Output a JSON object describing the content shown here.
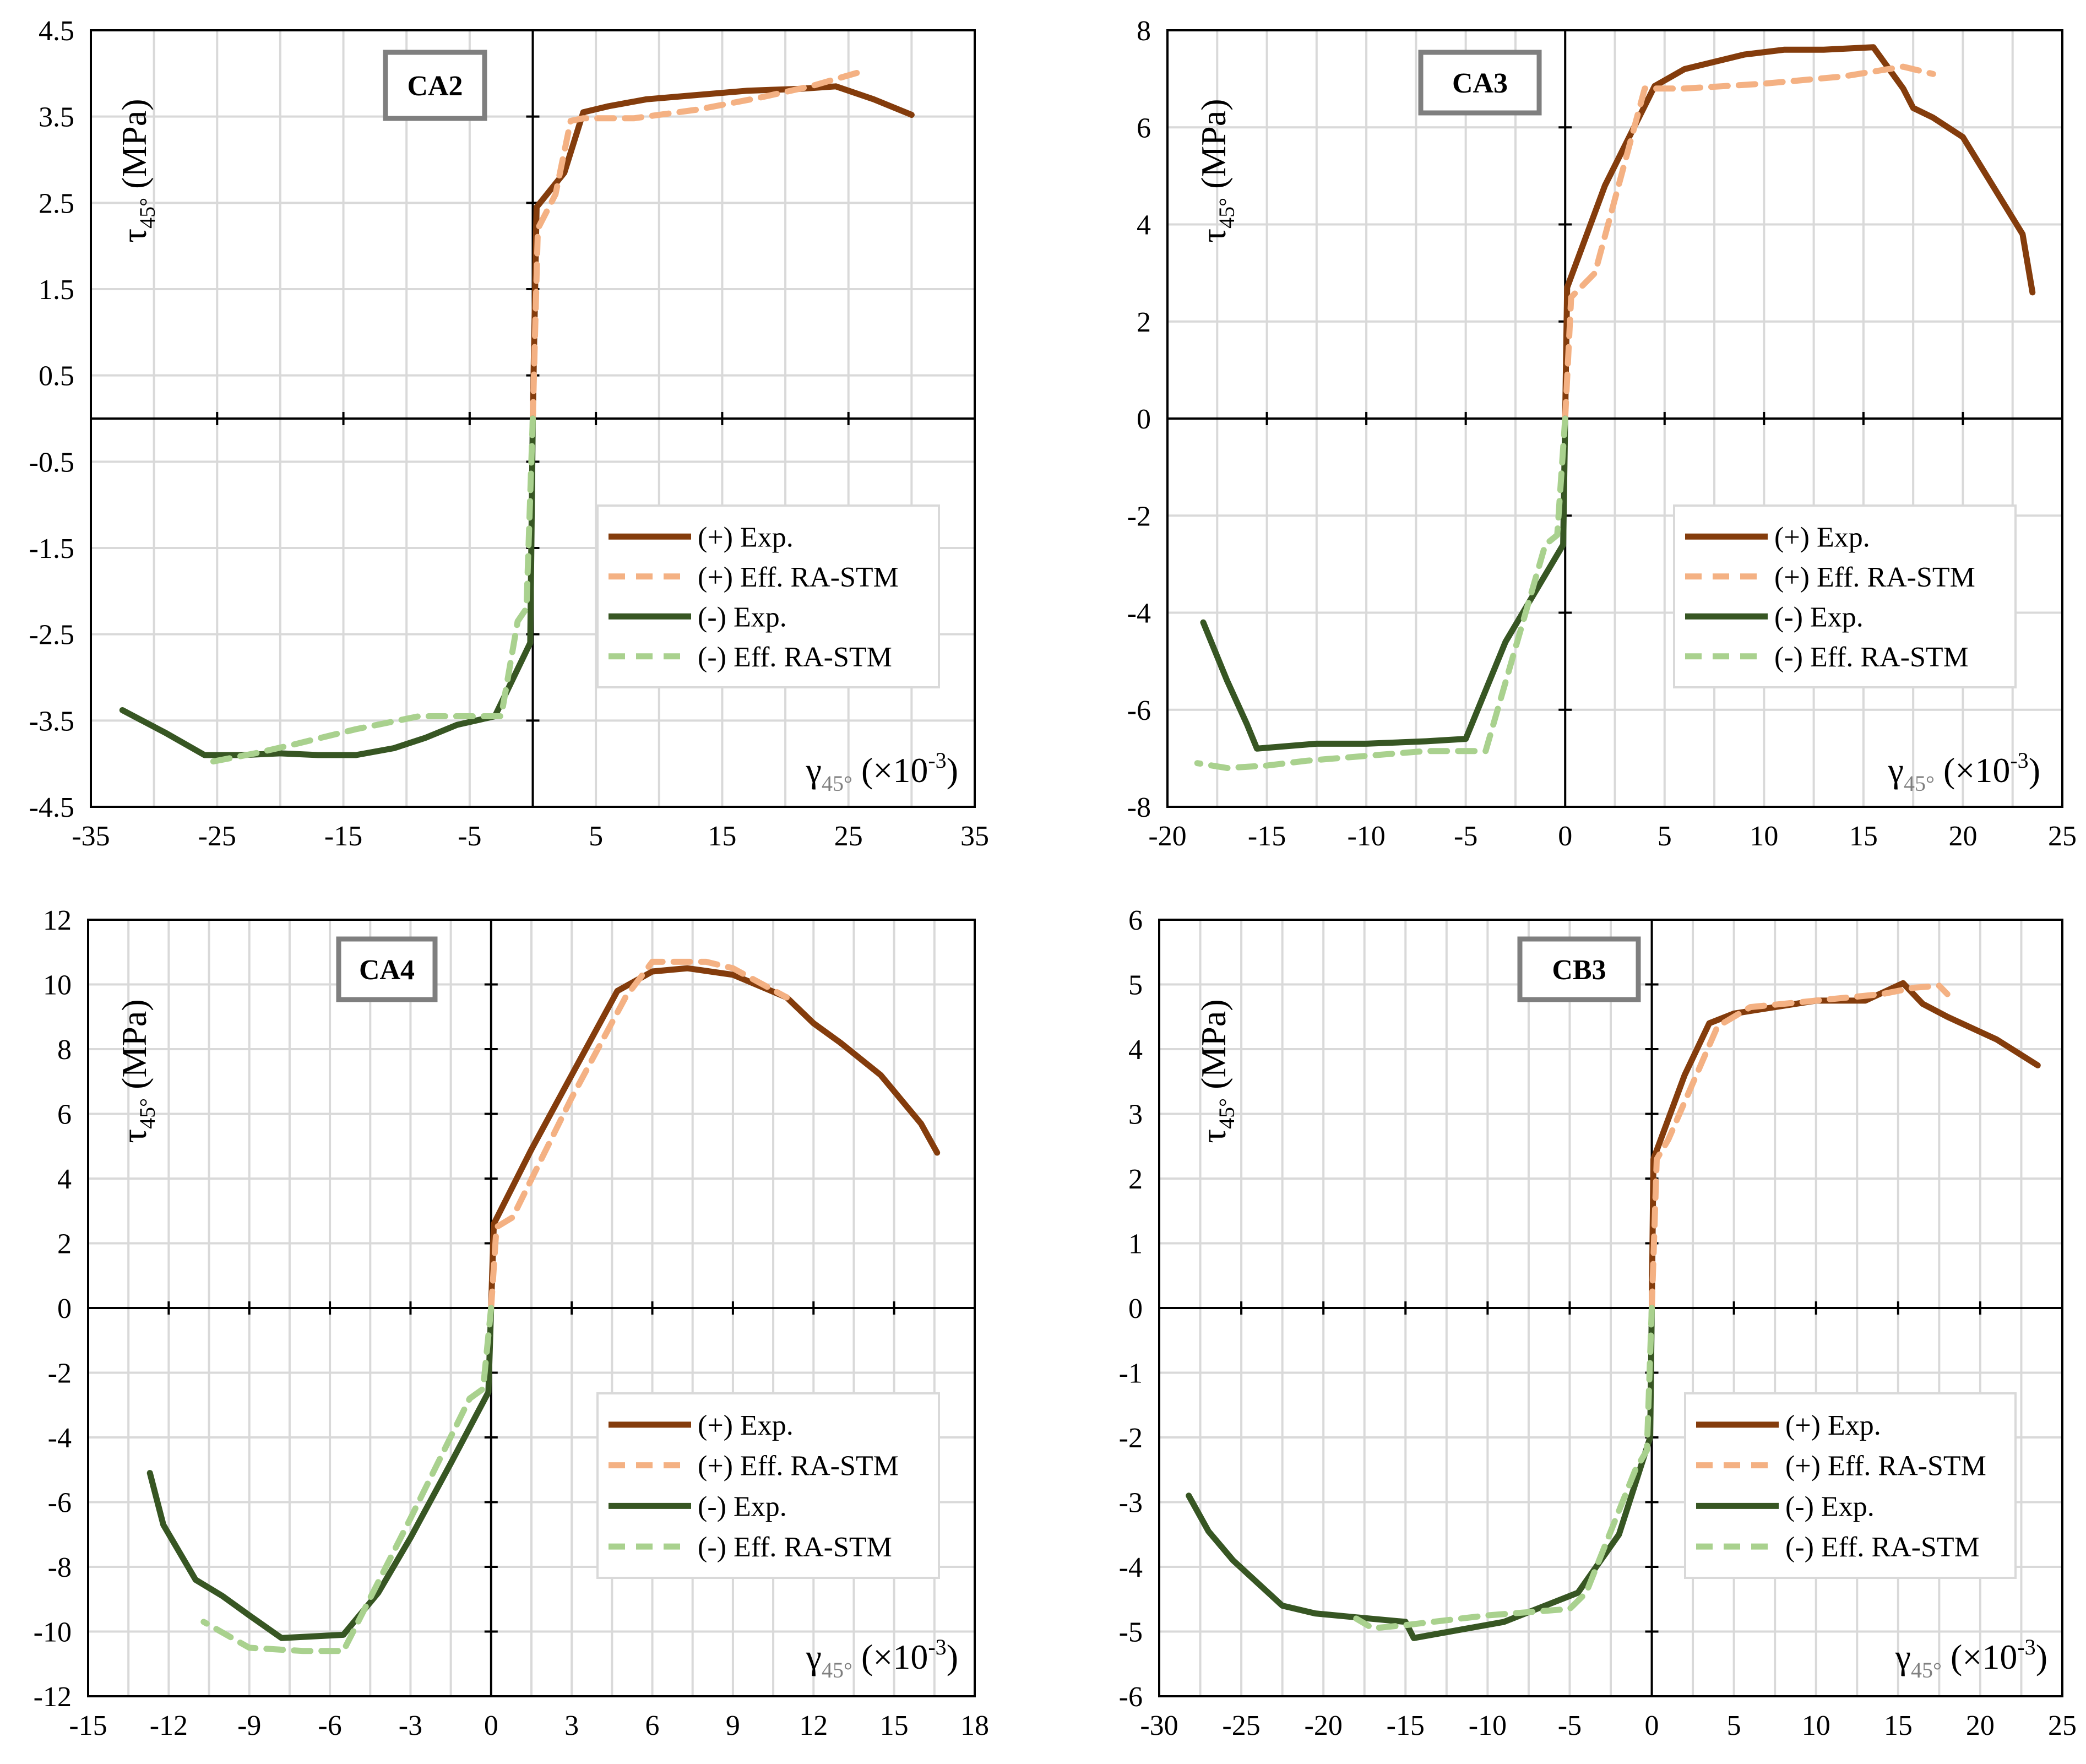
{
  "chart_data": [
    {
      "type": "line",
      "title": "CA2",
      "xlabel": "γ45° (×10-3)",
      "ylabel": "τ45° (MPa)",
      "xlim": [
        -35,
        35
      ],
      "ylim": [
        -4.5,
        4.5
      ],
      "xticks": [
        -35,
        -25,
        -15,
        -5,
        5,
        15,
        25,
        35
      ],
      "xtick_labels": [
        "-35",
        "-25",
        "-15",
        "-5",
        "5",
        "15",
        "25",
        "35"
      ],
      "yticks": [
        -4.5,
        -3.5,
        -2.5,
        -1.5,
        -0.5,
        0.5,
        1.5,
        2.5,
        3.5,
        4.5
      ],
      "ytick_labels": [
        "-4.5",
        "-3.5",
        "-2.5",
        "-1.5",
        "-0.5",
        "0.5",
        "1.5",
        "2.5",
        "3.5",
        "4.5"
      ],
      "grid": true,
      "legend_position": "right-middle",
      "series": [
        {
          "name": "(+) Exp.",
          "color": "#843c0c",
          "dash": "solid",
          "x": [
            0,
            0.3,
            2.5,
            4,
            6,
            9,
            13,
            17,
            21,
            24,
            27,
            30
          ],
          "y": [
            0,
            2.45,
            2.85,
            3.55,
            3.62,
            3.7,
            3.75,
            3.8,
            3.82,
            3.85,
            3.7,
            3.52
          ]
        },
        {
          "name": "(+) Eff. RA-STM",
          "color": "#f4b183",
          "dash": "dashed",
          "x": [
            0,
            0.4,
            1.8,
            3,
            4,
            8,
            13,
            18,
            22,
            26
          ],
          "y": [
            0,
            2.2,
            2.6,
            3.45,
            3.48,
            3.48,
            3.58,
            3.72,
            3.85,
            4.02
          ]
        },
        {
          "name": "(-) Exp.",
          "color": "#375623",
          "dash": "solid",
          "x": [
            0,
            -0.2,
            -3,
            -6,
            -8.5,
            -11,
            -14,
            -17,
            -20,
            -23,
            -26,
            -29,
            -32.5
          ],
          "y": [
            0,
            -2.6,
            -3.45,
            -3.55,
            -3.7,
            -3.82,
            -3.9,
            -3.9,
            -3.88,
            -3.9,
            -3.9,
            -3.65,
            -3.38
          ]
        },
        {
          "name": "(-) Eff. RA-STM",
          "color": "#a9d18e",
          "dash": "dashed",
          "x": [
            0,
            -0.5,
            -1.2,
            -2.5,
            -5,
            -9,
            -14,
            -19,
            -22,
            -25.5
          ],
          "y": [
            0,
            -2.2,
            -2.35,
            -3.45,
            -3.45,
            -3.45,
            -3.6,
            -3.78,
            -3.88,
            -3.98
          ]
        }
      ]
    },
    {
      "type": "line",
      "title": "CA3",
      "xlabel": "γ45° (×10-3)",
      "ylabel": "τ45° (MPa)",
      "xlim": [
        -20,
        25
      ],
      "ylim": [
        -8,
        8
      ],
      "xticks": [
        -20,
        -15,
        -10,
        -5,
        0,
        5,
        10,
        15,
        20,
        25
      ],
      "xtick_labels": [
        "-20",
        "-15",
        "-10",
        "-5",
        "0",
        "5",
        "10",
        "15",
        "20",
        "25"
      ],
      "yticks": [
        -8,
        -6,
        -4,
        -2,
        0,
        2,
        4,
        6,
        8
      ],
      "ytick_labels": [
        "-8",
        "-6",
        "-4",
        "-2",
        "0",
        "2",
        "4",
        "6",
        "8"
      ],
      "grid": true,
      "legend_position": "right-middle",
      "series": [
        {
          "name": "(+) Exp.",
          "color": "#843c0c",
          "dash": "solid",
          "x": [
            0,
            0.1,
            2,
            4.5,
            6,
            9,
            11,
            13,
            15.5,
            17,
            17.5,
            18.5,
            20,
            21.5,
            23,
            23.5
          ],
          "y": [
            0,
            2.7,
            4.8,
            6.85,
            7.2,
            7.5,
            7.6,
            7.6,
            7.65,
            6.8,
            6.4,
            6.2,
            5.8,
            4.8,
            3.8,
            2.6
          ]
        },
        {
          "name": "(+) Eff. RA-STM",
          "color": "#f4b183",
          "dash": "dashed",
          "x": [
            0,
            0.3,
            1.5,
            4,
            6,
            10,
            14,
            17,
            18.5
          ],
          "y": [
            0,
            2.5,
            3,
            6.8,
            6.8,
            6.9,
            7.05,
            7.25,
            7.1
          ]
        },
        {
          "name": "(-) Exp.",
          "color": "#375623",
          "dash": "solid",
          "x": [
            0,
            -0.1,
            -3,
            -5,
            -7,
            -10,
            -12.5,
            -15.5,
            -16,
            -17,
            -18.2
          ],
          "y": [
            0,
            -2.6,
            -4.6,
            -6.6,
            -6.65,
            -6.7,
            -6.7,
            -6.8,
            -6.3,
            -5.4,
            -4.2
          ]
        },
        {
          "name": "(-) Eff. RA-STM",
          "color": "#a9d18e",
          "dash": "dashed",
          "x": [
            0,
            -0.4,
            -1,
            -4,
            -7,
            -10,
            -13,
            -15,
            -17,
            -18.5
          ],
          "y": [
            0,
            -2.4,
            -2.6,
            -6.85,
            -6.85,
            -6.95,
            -7.05,
            -7.15,
            -7.2,
            -7.1
          ]
        }
      ]
    },
    {
      "type": "line",
      "title": "CA4",
      "xlabel": "γ45° (×10-3)",
      "ylabel": "τ45° (MPa)",
      "xlim": [
        -15,
        18
      ],
      "ylim": [
        -12,
        12
      ],
      "xticks": [
        -15,
        -12,
        -9,
        -6,
        -3,
        0,
        3,
        6,
        9,
        12,
        15,
        18
      ],
      "xtick_labels": [
        "-15",
        "-12",
        "-9",
        "-6",
        "-3",
        "0",
        "3",
        "6",
        "9",
        "12",
        "15",
        "18"
      ],
      "yticks": [
        -12,
        -10,
        -8,
        -6,
        -4,
        -2,
        0,
        2,
        4,
        6,
        8,
        10,
        12
      ],
      "ytick_labels": [
        "-12",
        "-10",
        "-8",
        "-6",
        "-4",
        "-2",
        "0",
        "2",
        "4",
        "6",
        "8",
        "10",
        "12"
      ],
      "grid": true,
      "legend_position": "right-lower",
      "series": [
        {
          "name": "(+) Exp.",
          "color": "#843c0c",
          "dash": "solid",
          "x": [
            0,
            0.1,
            1.5,
            3,
            4.7,
            6,
            7.3,
            9,
            11,
            12,
            13,
            14.5,
            16,
            16.6
          ],
          "y": [
            0,
            2.6,
            4.9,
            7.2,
            9.8,
            10.4,
            10.5,
            10.3,
            9.6,
            8.8,
            8.2,
            7.2,
            5.7,
            4.8
          ]
        },
        {
          "name": "(+) Eff. RA-STM",
          "color": "#f4b183",
          "dash": "dashed",
          "x": [
            0,
            0.2,
            0.8,
            3,
            5,
            6,
            8,
            9,
            11
          ],
          "y": [
            0,
            2.5,
            2.8,
            6.5,
            9.6,
            10.7,
            10.7,
            10.5,
            9.6
          ]
        },
        {
          "name": "(-) Exp.",
          "color": "#375623",
          "dash": "solid",
          "x": [
            0,
            -0.1,
            -1.5,
            -3,
            -4.2,
            -5.5,
            -7.8,
            -9,
            -10,
            -11,
            -12.2,
            -12.7
          ],
          "y": [
            0,
            -2.6,
            -4.8,
            -7.1,
            -8.8,
            -10.1,
            -10.2,
            -9.5,
            -8.9,
            -8.4,
            -6.7,
            -5.1
          ]
        },
        {
          "name": "(-) Eff. RA-STM",
          "color": "#a9d18e",
          "dash": "dashed",
          "x": [
            0,
            -0.3,
            -0.8,
            -3,
            -5.5,
            -7,
            -9,
            -10.7
          ],
          "y": [
            0,
            -2.5,
            -2.8,
            -6.5,
            -10.6,
            -10.6,
            -10.5,
            -9.7
          ]
        }
      ]
    },
    {
      "type": "line",
      "title": "CB3",
      "xlabel": "γ45° (×10-3)",
      "ylabel": "τ45° (MPa)",
      "xlim": [
        -30,
        25
      ],
      "ylim": [
        -6,
        6
      ],
      "xticks": [
        -30,
        -25,
        -20,
        -15,
        -10,
        -5,
        0,
        5,
        10,
        15,
        20,
        25
      ],
      "xtick_labels": [
        "-30",
        "-25",
        "-20",
        "-15",
        "-10",
        "-5",
        "0",
        "5",
        "10",
        "15",
        "20",
        "25"
      ],
      "yticks": [
        -6,
        -5,
        -4,
        -3,
        -2,
        -1,
        0,
        1,
        2,
        3,
        4,
        5,
        6
      ],
      "ytick_labels": [
        "-6",
        "-5",
        "-4",
        "-3",
        "-2",
        "-1",
        "0",
        "1",
        "2",
        "3",
        "4",
        "5",
        "6"
      ],
      "grid": true,
      "legend_position": "right-lower",
      "series": [
        {
          "name": "(+) Exp.",
          "color": "#843c0c",
          "dash": "solid",
          "x": [
            0,
            0.1,
            2,
            3.5,
            5,
            10,
            13,
            15.3,
            16.5,
            18,
            21,
            23.5
          ],
          "y": [
            0,
            2.3,
            3.6,
            4.4,
            4.55,
            4.75,
            4.75,
            5.02,
            4.7,
            4.5,
            4.15,
            3.75
          ]
        },
        {
          "name": "(+) Eff. RA-STM",
          "color": "#f4b183",
          "dash": "dashed",
          "x": [
            0,
            0.3,
            1,
            4,
            6,
            10,
            14,
            16,
            17.5,
            18
          ],
          "y": [
            0,
            2.3,
            2.6,
            4.35,
            4.65,
            4.75,
            4.85,
            4.95,
            4.98,
            4.85
          ]
        },
        {
          "name": "(-) Exp.",
          "color": "#375623",
          "dash": "solid",
          "x": [
            0,
            -0.1,
            -2,
            -4.5,
            -9,
            -14.5,
            -15,
            -18,
            -20.5,
            -22.5,
            -25.5,
            -27,
            -28.2
          ],
          "y": [
            0,
            -2,
            -3.5,
            -4.4,
            -4.85,
            -5.1,
            -4.85,
            -4.78,
            -4.72,
            -4.6,
            -3.9,
            -3.45,
            -2.9
          ]
        },
        {
          "name": "(-) Eff. RA-STM",
          "color": "#a9d18e",
          "dash": "dashed",
          "x": [
            0,
            -0.3,
            -1,
            -4,
            -5,
            -10,
            -15,
            -17,
            -18
          ],
          "y": [
            0,
            -2.2,
            -2.5,
            -4.4,
            -4.65,
            -4.75,
            -4.9,
            -4.95,
            -4.8
          ]
        }
      ]
    }
  ]
}
